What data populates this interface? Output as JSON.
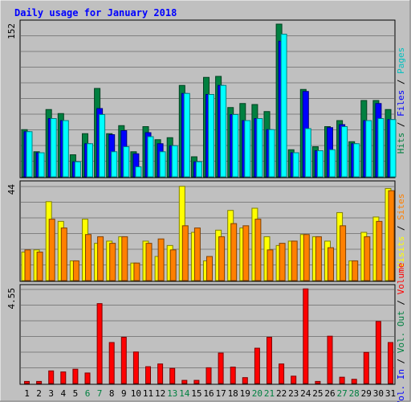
{
  "chart_data": [
    {
      "type": "bar",
      "title": "Daily usage for January 2018",
      "panel": "hits-files-pages",
      "categories": [
        "1",
        "2",
        "3",
        "4",
        "5",
        "6",
        "7",
        "8",
        "9",
        "10",
        "11",
        "12",
        "13",
        "14",
        "15",
        "16",
        "17",
        "18",
        "19",
        "20",
        "21",
        "22",
        "23",
        "24",
        "25",
        "26",
        "27",
        "28",
        "29",
        "30",
        "31"
      ],
      "weekend_days": [
        "6",
        "7",
        "13",
        "14",
        "20",
        "21",
        "27",
        "28"
      ],
      "ylim": [
        0,
        152
      ],
      "ytick_label": "152",
      "side_labels": [
        "Hits",
        "Files",
        "Pages"
      ],
      "series": [
        {
          "name": "Hits",
          "color": "#008040",
          "values": [
            47,
            25,
            67,
            63,
            22,
            43,
            88,
            43,
            51,
            25,
            50,
            37,
            39,
            91,
            20,
            99,
            100,
            69,
            73,
            72,
            65,
            152,
            27,
            87,
            30,
            50,
            56,
            35,
            76,
            76,
            67
          ]
        },
        {
          "name": "Files",
          "color": "#0000ff",
          "values": [
            45,
            24,
            58,
            56,
            15,
            33,
            68,
            42,
            46,
            23,
            44,
            33,
            31,
            83,
            15,
            82,
            91,
            62,
            56,
            58,
            47,
            135,
            24,
            85,
            26,
            49,
            52,
            33,
            56,
            73,
            57
          ]
        },
        {
          "name": "Pages",
          "color": "#00ffff",
          "values": [
            45,
            24,
            58,
            56,
            15,
            33,
            62,
            25,
            30,
            10,
            40,
            25,
            31,
            83,
            15,
            82,
            91,
            62,
            56,
            58,
            47,
            142,
            24,
            48,
            26,
            27,
            50,
            33,
            56,
            58,
            57
          ]
        }
      ]
    },
    {
      "type": "bar",
      "panel": "visits-sites",
      "categories": [
        "1",
        "2",
        "3",
        "4",
        "5",
        "6",
        "7",
        "8",
        "9",
        "10",
        "11",
        "12",
        "13",
        "14",
        "15",
        "16",
        "17",
        "18",
        "19",
        "20",
        "21",
        "22",
        "23",
        "24",
        "25",
        "26",
        "27",
        "28",
        "29",
        "30",
        "31"
      ],
      "ylim": [
        0,
        44
      ],
      "ytick_label": "44",
      "side_labels": [
        "Sites",
        "Visits"
      ],
      "series": [
        {
          "name": "Visits",
          "color": "#ffff00",
          "values": [
            13,
            14,
            36,
            27,
            9,
            28,
            17,
            18,
            20,
            8,
            18,
            11,
            16,
            43,
            22,
            9,
            23,
            32,
            24,
            33,
            20,
            16,
            18,
            21,
            20,
            18,
            31,
            9,
            22,
            29,
            42
          ]
        },
        {
          "name": "Sites",
          "color": "#ff8000",
          "values": [
            14,
            13,
            28,
            24,
            9,
            21,
            20,
            17,
            20,
            8,
            17,
            19,
            14,
            25,
            24,
            11,
            20,
            26,
            25,
            28,
            14,
            17,
            18,
            21,
            20,
            15,
            25,
            9,
            20,
            27,
            41
          ]
        }
      ]
    },
    {
      "type": "bar",
      "panel": "volume",
      "categories": [
        "1",
        "2",
        "3",
        "4",
        "5",
        "6",
        "7",
        "8",
        "9",
        "10",
        "11",
        "12",
        "13",
        "14",
        "15",
        "16",
        "17",
        "18",
        "19",
        "20",
        "21",
        "22",
        "23",
        "24",
        "25",
        "26",
        "27",
        "28",
        "29",
        "30",
        "31"
      ],
      "ylim": [
        0,
        4.55
      ],
      "ytick_label": "4.55",
      "side_labels": [
        "Vol. In",
        "Vol. Out",
        "Volume"
      ],
      "series": [
        {
          "name": "Volume",
          "color": "#ff0000",
          "values": [
            0.1,
            0.1,
            0.6,
            0.55,
            0.68,
            0.5,
            3.8,
            1.95,
            2.2,
            1.5,
            0.8,
            0.93,
            0.72,
            0.15,
            0.15,
            0.75,
            1.45,
            0.78,
            0.28,
            1.68,
            2.2,
            0.93,
            0.35,
            4.5,
            0.1,
            2.25,
            0.3,
            0.2,
            1.48,
            2.95,
            1.95
          ]
        }
      ]
    }
  ],
  "legend": {
    "top": [
      {
        "text": "Hits",
        "color": "#008040"
      },
      {
        "text": " / ",
        "color": "#000000"
      },
      {
        "text": "Files",
        "color": "#0000ff"
      },
      {
        "text": " / ",
        "color": "#000000"
      },
      {
        "text": "Pages",
        "color": "#00c0c0"
      }
    ],
    "middle": [
      {
        "text": "Visits",
        "color": "#ffff00"
      },
      {
        "text": " / ",
        "color": "#000000"
      },
      {
        "text": "Sites",
        "color": "#ff8000"
      }
    ],
    "bottom": [
      {
        "text": "Vol. In",
        "color": "#0000ff"
      },
      {
        "text": " / ",
        "color": "#000000"
      },
      {
        "text": "Vol. Out",
        "color": "#008040"
      },
      {
        "text": " / ",
        "color": "#000000"
      },
      {
        "text": "Volume",
        "color": "#ff0000"
      }
    ]
  },
  "colors": {
    "background": "#c0c0c0",
    "title": "#0000ff",
    "weekday_label": "#000000",
    "weekend_label": "#008040"
  }
}
